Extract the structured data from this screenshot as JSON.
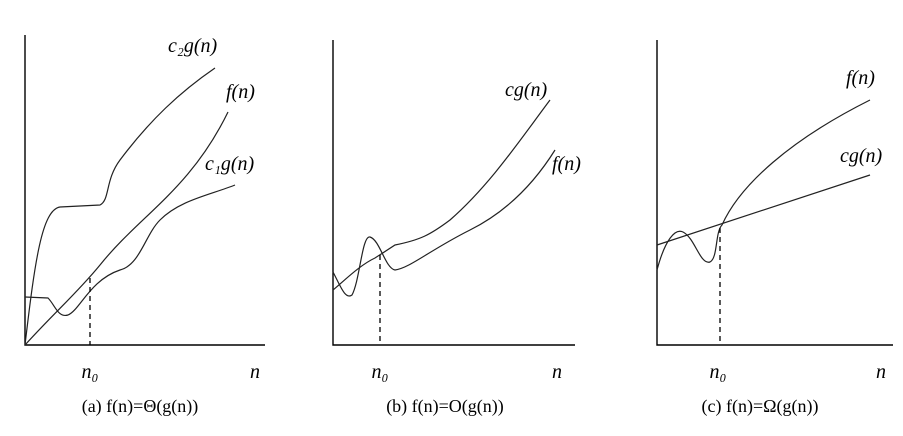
{
  "panels": [
    {
      "labels": [
        "c₂g(n)",
        "f(n)",
        "c₁g(n)"
      ],
      "n0": "n₀",
      "axis": "n",
      "caption": "(a) f(n)=Θ(g(n))"
    },
    {
      "labels": [
        "cg(n)",
        "f(n)"
      ],
      "n0": "n₀",
      "axis": "n",
      "caption": "(b) f(n)=O(g(n))"
    },
    {
      "labels": [
        "f(n)",
        "cg(n)"
      ],
      "n0": "n₀",
      "axis": "n",
      "caption": "(c) f(n)=Ω(g(n))"
    }
  ]
}
